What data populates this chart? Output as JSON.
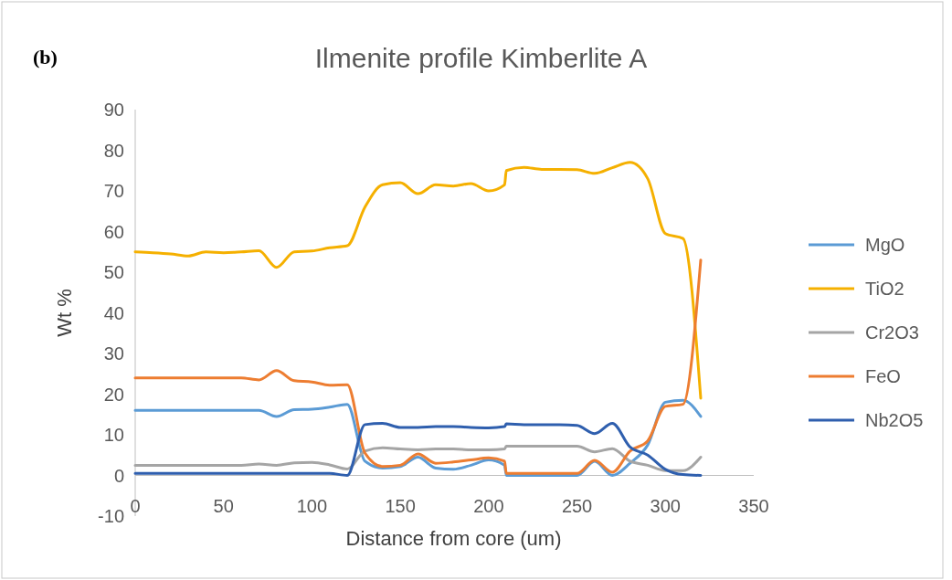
{
  "chart_data": {
    "type": "line",
    "title": "Ilmenite profile Kimberlite A",
    "xlabel": "Distance from core (um)",
    "ylabel": "Wt %",
    "annotations": [
      "(b)"
    ],
    "x": [
      0,
      10,
      20,
      30,
      40,
      50,
      60,
      70,
      80,
      90,
      100,
      110,
      120,
      130,
      140,
      150,
      160,
      170,
      180,
      190,
      200,
      209,
      210,
      220,
      230,
      240,
      250,
      260,
      270,
      280,
      290,
      300,
      310,
      320
    ],
    "series": [
      {
        "name": "MgO",
        "color": "#5b9bd5",
        "values": [
          16,
          16,
          16,
          16,
          16,
          16,
          16,
          16,
          14.5,
          16.2,
          16.3,
          16.8,
          17.5,
          3.5,
          1.8,
          2.2,
          4.5,
          1.8,
          1.5,
          2.5,
          3.8,
          2.5,
          0,
          0,
          0,
          0,
          0,
          3.5,
          0,
          3,
          7.5,
          18,
          18.5,
          14.5
        ]
      },
      {
        "name": "TiO2",
        "color": "#f5b000",
        "values": [
          55,
          54.8,
          54.5,
          54,
          55,
          54.8,
          55,
          55.3,
          51.2,
          55,
          55.2,
          56,
          56.5,
          66,
          71.5,
          72,
          69.3,
          71.5,
          71.2,
          71.8,
          70,
          71.5,
          75,
          75.8,
          75.3,
          75.3,
          75.2,
          74.3,
          75.7,
          77,
          73,
          59.5,
          58.3,
          19
        ]
      },
      {
        "name": "Cr2O3",
        "color": "#a5a5a5",
        "values": [
          2.5,
          2.5,
          2.5,
          2.5,
          2.5,
          2.5,
          2.5,
          2.8,
          2.5,
          3.1,
          3.2,
          2.6,
          1.6,
          6,
          6.8,
          6.5,
          6.3,
          6.5,
          6.5,
          6.3,
          6.3,
          6.5,
          7.2,
          7.2,
          7.2,
          7.2,
          7.2,
          5.8,
          6.6,
          3.5,
          2.5,
          1.2,
          1.2,
          4.5
        ]
      },
      {
        "name": "FeO",
        "color": "#ed7d31",
        "values": [
          24,
          24,
          24,
          24,
          24,
          24,
          24,
          23.5,
          25.8,
          23.3,
          23,
          22.2,
          22.3,
          5.5,
          2.2,
          2.5,
          5.3,
          3,
          3.3,
          3.8,
          4.3,
          3.5,
          0.5,
          0.5,
          0.5,
          0.5,
          0.5,
          3.7,
          0.8,
          6,
          8.5,
          17,
          17.5,
          53
        ]
      },
      {
        "name": "Nb2O5",
        "color": "#2f5fae",
        "values": [
          0.5,
          0.5,
          0.5,
          0.5,
          0.5,
          0.5,
          0.5,
          0.5,
          0.5,
          0.5,
          0.5,
          0.5,
          0,
          12.5,
          12.8,
          11.8,
          11.8,
          12,
          12,
          11.8,
          11.7,
          12,
          12.7,
          12.5,
          12.5,
          12.5,
          12.3,
          10.3,
          12.8,
          7,
          5,
          1.5,
          0.2,
          0
        ]
      }
    ],
    "xlim": [
      0,
      350
    ],
    "xticks": [
      0,
      50,
      100,
      150,
      200,
      250,
      300,
      350
    ],
    "ylim": [
      -10,
      90
    ],
    "yticks": [
      -10,
      0,
      10,
      20,
      30,
      40,
      50,
      60,
      70,
      80,
      90
    ],
    "grid": false,
    "legend": "right"
  }
}
